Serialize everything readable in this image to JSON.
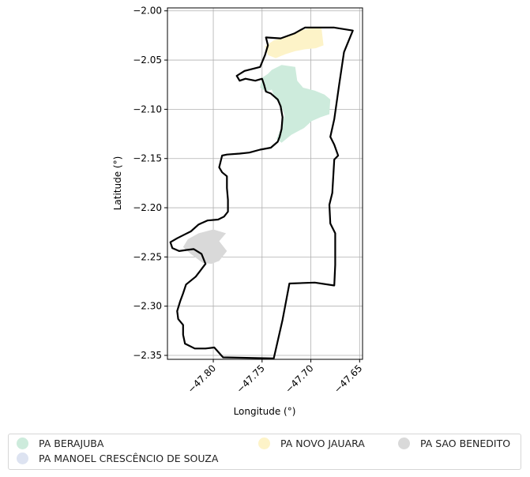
{
  "chart_data": {
    "type": "map",
    "title": "",
    "xlabel": "Longitude (°)",
    "ylabel": "Latitude (°)",
    "xlim": [
      -47.847,
      -47.647
    ],
    "ylim": [
      -2.354,
      -1.997
    ],
    "grid": true,
    "x_ticks": [
      -47.8,
      -47.75,
      -47.7,
      -47.65
    ],
    "x_tick_labels": [
      "−47.80",
      "−47.75",
      "−47.70",
      "−47.65"
    ],
    "y_ticks": [
      -2.0,
      -2.05,
      -2.1,
      -2.15,
      -2.2,
      -2.25,
      -2.3,
      -2.35
    ],
    "y_tick_labels": [
      "−2.00",
      "−2.05",
      "−2.10",
      "−2.15",
      "−2.20",
      "−2.25",
      "−2.30",
      "−2.35"
    ],
    "legend_placement": "bottom",
    "boundary": {
      "color": "#000000",
      "coords": [
        [
          -47.746,
          -2.027
        ],
        [
          -47.731,
          -2.028
        ],
        [
          -47.717,
          -2.023
        ],
        [
          -47.706,
          -2.017
        ],
        [
          -47.676,
          -2.017
        ],
        [
          -47.657,
          -2.02
        ],
        [
          -47.666,
          -2.042
        ],
        [
          -47.671,
          -2.075
        ],
        [
          -47.676,
          -2.11
        ],
        [
          -47.68,
          -2.128
        ],
        [
          -47.676,
          -2.136
        ],
        [
          -47.672,
          -2.147
        ],
        [
          -47.676,
          -2.151
        ],
        [
          -47.678,
          -2.185
        ],
        [
          -47.681,
          -2.197
        ],
        [
          -47.68,
          -2.216
        ],
        [
          -47.675,
          -2.226
        ],
        [
          -47.675,
          -2.258
        ],
        [
          -47.676,
          -2.279
        ],
        [
          -47.696,
          -2.276
        ],
        [
          -47.722,
          -2.277
        ],
        [
          -47.729,
          -2.314
        ],
        [
          -47.738,
          -2.353
        ],
        [
          -47.79,
          -2.352
        ],
        [
          -47.799,
          -2.342
        ],
        [
          -47.808,
          -2.343
        ],
        [
          -47.819,
          -2.343
        ],
        [
          -47.829,
          -2.338
        ],
        [
          -47.831,
          -2.329
        ],
        [
          -47.831,
          -2.319
        ],
        [
          -47.836,
          -2.313
        ],
        [
          -47.837,
          -2.305
        ],
        [
          -47.834,
          -2.295
        ],
        [
          -47.831,
          -2.287
        ],
        [
          -47.828,
          -2.278
        ],
        [
          -47.818,
          -2.27
        ],
        [
          -47.808,
          -2.257
        ],
        [
          -47.812,
          -2.247
        ],
        [
          -47.82,
          -2.242
        ],
        [
          -47.828,
          -2.243
        ],
        [
          -47.835,
          -2.244
        ],
        [
          -47.842,
          -2.241
        ],
        [
          -47.844,
          -2.235
        ],
        [
          -47.837,
          -2.231
        ],
        [
          -47.829,
          -2.227
        ],
        [
          -47.823,
          -2.224
        ],
        [
          -47.815,
          -2.217
        ],
        [
          -47.806,
          -2.213
        ],
        [
          -47.795,
          -2.212
        ],
        [
          -47.789,
          -2.209
        ],
        [
          -47.785,
          -2.204
        ],
        [
          -47.785,
          -2.192
        ],
        [
          -47.786,
          -2.18
        ],
        [
          -47.786,
          -2.168
        ],
        [
          -47.791,
          -2.164
        ],
        [
          -47.794,
          -2.159
        ],
        [
          -47.791,
          -2.147
        ],
        [
          -47.786,
          -2.146
        ],
        [
          -47.773,
          -2.145
        ],
        [
          -47.763,
          -2.144
        ],
        [
          -47.752,
          -2.141
        ],
        [
          -47.741,
          -2.139
        ],
        [
          -47.734,
          -2.133
        ],
        [
          -47.732,
          -2.128
        ],
        [
          -47.73,
          -2.12
        ],
        [
          -47.729,
          -2.108
        ],
        [
          -47.731,
          -2.097
        ],
        [
          -47.734,
          -2.09
        ],
        [
          -47.741,
          -2.084
        ],
        [
          -47.746,
          -2.082
        ],
        [
          -47.748,
          -2.075
        ],
        [
          -47.75,
          -2.069
        ],
        [
          -47.757,
          -2.071
        ],
        [
          -47.767,
          -2.069
        ],
        [
          -47.773,
          -2.071
        ],
        [
          -47.776,
          -2.066
        ],
        [
          -47.768,
          -2.061
        ],
        [
          -47.752,
          -2.057
        ],
        [
          -47.747,
          -2.045
        ],
        [
          -47.744,
          -2.035
        ]
      ]
    },
    "series": [
      {
        "name": "PA BERAJUBA",
        "color": "#cdebdc",
        "polygons": [
          [
            [
              -47.74,
              -2.06
            ],
            [
              -47.73,
              -2.055
            ],
            [
              -47.716,
              -2.057
            ],
            [
              -47.714,
              -2.071
            ],
            [
              -47.708,
              -2.078
            ],
            [
              -47.696,
              -2.081
            ],
            [
              -47.686,
              -2.085
            ],
            [
              -47.68,
              -2.09
            ],
            [
              -47.681,
              -2.105
            ],
            [
              -47.69,
              -2.108
            ],
            [
              -47.699,
              -2.112
            ],
            [
              -47.707,
              -2.119
            ],
            [
              -47.72,
              -2.126
            ],
            [
              -47.73,
              -2.134
            ],
            [
              -47.735,
              -2.13
            ],
            [
              -47.73,
              -2.118
            ],
            [
              -47.727,
              -2.106
            ],
            [
              -47.731,
              -2.095
            ],
            [
              -47.737,
              -2.089
            ],
            [
              -47.74,
              -2.08
            ],
            [
              -47.746,
              -2.082
            ],
            [
              -47.752,
              -2.078
            ],
            [
              -47.75,
              -2.068
            ],
            [
              -47.744,
              -2.064
            ]
          ]
        ]
      },
      {
        "name": "PA MANOEL CRESCÊNCIO DE SOUZA",
        "color": "#dde3f1",
        "polygons": []
      },
      {
        "name": "PA NOVO JAUARA",
        "color": "#fdf3c8",
        "polygons": [
          [
            [
              -47.747,
              -2.036
            ],
            [
              -47.738,
              -2.03
            ],
            [
              -47.726,
              -2.027
            ],
            [
              -47.714,
              -2.021
            ],
            [
              -47.699,
              -2.017
            ],
            [
              -47.689,
              -2.018
            ],
            [
              -47.687,
              -2.035
            ],
            [
              -47.695,
              -2.038
            ],
            [
              -47.706,
              -2.039
            ],
            [
              -47.716,
              -2.041
            ],
            [
              -47.726,
              -2.044
            ],
            [
              -47.736,
              -2.048
            ],
            [
              -47.744,
              -2.045
            ]
          ]
        ]
      },
      {
        "name": "PA SAO BENEDITO",
        "color": "#d9d9d9",
        "polygons": [
          [
            [
              -47.8,
              -2.222
            ],
            [
              -47.787,
              -2.226
            ],
            [
              -47.794,
              -2.234
            ],
            [
              -47.786,
              -2.244
            ],
            [
              -47.794,
              -2.254
            ],
            [
              -47.802,
              -2.257
            ],
            [
              -47.811,
              -2.256
            ],
            [
              -47.823,
              -2.247
            ],
            [
              -47.831,
              -2.24
            ],
            [
              -47.826,
              -2.232
            ],
            [
              -47.815,
              -2.226
            ]
          ]
        ]
      }
    ]
  },
  "legend": {
    "items": [
      {
        "label": "PA BERAJUBA",
        "color": "#cdebdc"
      },
      {
        "label": "PA MANOEL CRESCÊNCIO DE SOUZA",
        "color": "#dde3f1"
      },
      {
        "label": "PA NOVO JAUARA",
        "color": "#fdf3c8"
      },
      {
        "label": "PA SAO BENEDITO",
        "color": "#d9d9d9"
      }
    ]
  }
}
